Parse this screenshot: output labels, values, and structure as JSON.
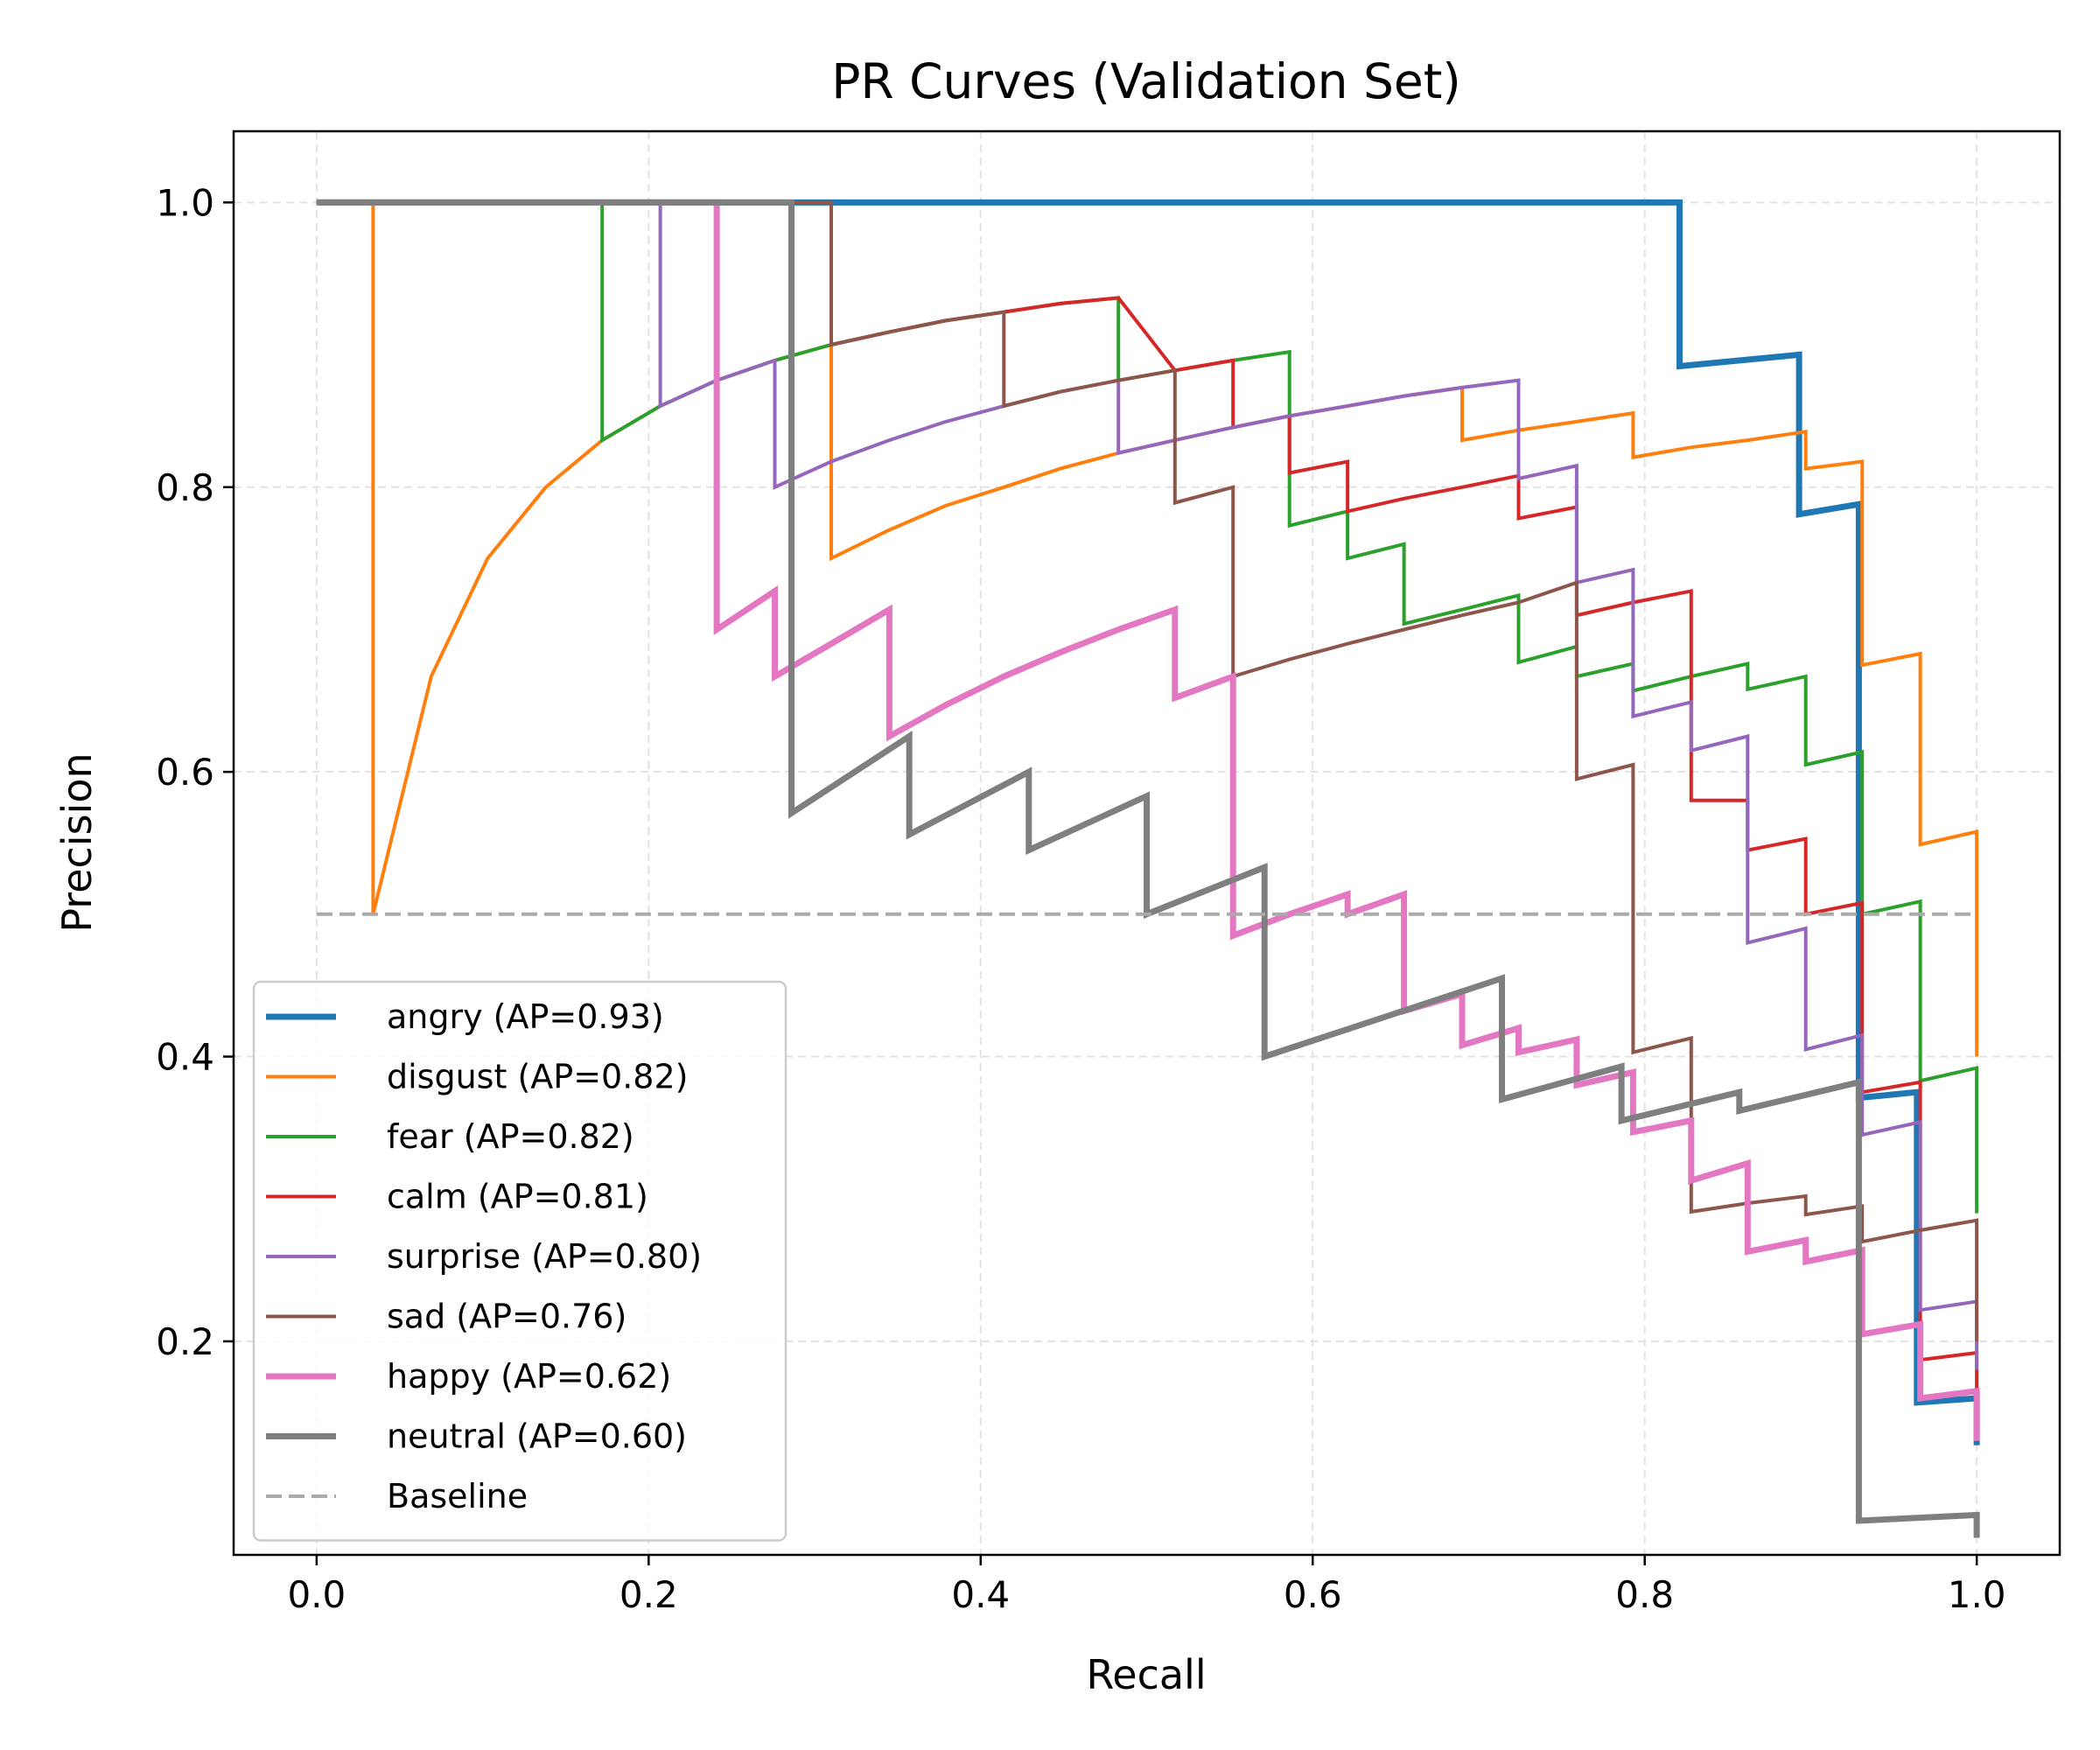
{
  "chart_data": {
    "type": "line",
    "title": "PR Curves (Validation Set)",
    "xlabel": "Recall",
    "ylabel": "Precision",
    "xlim": [
      -0.05,
      1.05
    ],
    "ylim": [
      0.05,
      1.05
    ],
    "xticks": [
      "0.0",
      "0.2",
      "0.4",
      "0.6",
      "0.8",
      "1.0"
    ],
    "xtick_values": [
      0.0,
      0.2,
      0.4,
      0.6,
      0.8,
      1.0
    ],
    "yticks": [
      "0.2",
      "0.4",
      "0.6",
      "0.8",
      "1.0"
    ],
    "ytick_values": [
      0.2,
      0.4,
      0.6,
      0.8,
      1.0
    ],
    "grid": true,
    "legend_position": "lower-left",
    "series": [
      {
        "name": "angry (AP=0.93)",
        "color": "#1f77b4",
        "width": "thick",
        "points": [
          [
            0.0,
            1.0
          ],
          [
            0.821,
            1.0
          ],
          [
            0.821,
            0.885
          ],
          [
            0.893,
            0.893
          ],
          [
            0.893,
            0.781
          ],
          [
            0.929,
            0.788
          ],
          [
            0.929,
            0.675
          ],
          [
            0.929,
            0.371
          ],
          [
            0.964,
            0.375
          ],
          [
            0.964,
            0.157
          ],
          [
            1.0,
            0.16
          ],
          [
            1.0,
            0.127
          ]
        ]
      },
      {
        "name": "disgust (AP=0.82)",
        "color": "#ff7f0e",
        "width": "normal",
        "points": [
          [
            0.0,
            1.0
          ],
          [
            0.034,
            1.0
          ],
          [
            0.034,
            0.5
          ],
          [
            0.069,
            0.667
          ],
          [
            0.103,
            0.75
          ],
          [
            0.138,
            0.8
          ],
          [
            0.172,
            0.833
          ],
          [
            0.207,
            0.857
          ],
          [
            0.241,
            0.875
          ],
          [
            0.276,
            0.889
          ],
          [
            0.31,
            0.9
          ],
          [
            0.31,
            0.75
          ],
          [
            0.345,
            0.77
          ],
          [
            0.379,
            0.787
          ],
          [
            0.414,
            0.8
          ],
          [
            0.448,
            0.813
          ],
          [
            0.483,
            0.824
          ],
          [
            0.517,
            0.833
          ],
          [
            0.552,
            0.842
          ],
          [
            0.586,
            0.85
          ],
          [
            0.621,
            0.857
          ],
          [
            0.655,
            0.864
          ],
          [
            0.69,
            0.87
          ],
          [
            0.69,
            0.833
          ],
          [
            0.724,
            0.84
          ],
          [
            0.759,
            0.846
          ],
          [
            0.793,
            0.852
          ],
          [
            0.793,
            0.821
          ],
          [
            0.828,
            0.828
          ],
          [
            0.862,
            0.833
          ],
          [
            0.897,
            0.839
          ],
          [
            0.897,
            0.813
          ],
          [
            0.931,
            0.818
          ],
          [
            0.931,
            0.675
          ],
          [
            0.966,
            0.683
          ],
          [
            0.966,
            0.549
          ],
          [
            1.0,
            0.558
          ],
          [
            1.0,
            0.4
          ]
        ]
      },
      {
        "name": "fear (AP=0.82)",
        "color": "#2ca02c",
        "width": "normal",
        "points": [
          [
            0.0,
            1.0
          ],
          [
            0.172,
            1.0
          ],
          [
            0.172,
            0.833
          ],
          [
            0.207,
            0.857
          ],
          [
            0.241,
            0.875
          ],
          [
            0.276,
            0.889
          ],
          [
            0.31,
            0.9
          ],
          [
            0.345,
            0.909
          ],
          [
            0.379,
            0.917
          ],
          [
            0.414,
            0.923
          ],
          [
            0.448,
            0.929
          ],
          [
            0.483,
            0.933
          ],
          [
            0.483,
            0.875
          ],
          [
            0.517,
            0.882
          ],
          [
            0.552,
            0.889
          ],
          [
            0.586,
            0.895
          ],
          [
            0.586,
            0.773
          ],
          [
            0.621,
            0.783
          ],
          [
            0.621,
            0.75
          ],
          [
            0.655,
            0.76
          ],
          [
            0.655,
            0.704
          ],
          [
            0.69,
            0.714
          ],
          [
            0.724,
            0.724
          ],
          [
            0.724,
            0.677
          ],
          [
            0.759,
            0.688
          ],
          [
            0.759,
            0.667
          ],
          [
            0.793,
            0.676
          ],
          [
            0.793,
            0.657
          ],
          [
            0.828,
            0.667
          ],
          [
            0.862,
            0.676
          ],
          [
            0.862,
            0.658
          ],
          [
            0.897,
            0.667
          ],
          [
            0.897,
            0.605
          ],
          [
            0.931,
            0.614
          ],
          [
            0.931,
            0.5
          ],
          [
            0.966,
            0.509
          ],
          [
            0.966,
            0.383
          ],
          [
            1.0,
            0.392
          ],
          [
            1.0,
            0.29
          ]
        ]
      },
      {
        "name": "calm (AP=0.81)",
        "color": "#d62728",
        "width": "normal",
        "points": [
          [
            0.0,
            1.0
          ],
          [
            0.31,
            1.0
          ],
          [
            0.31,
            0.9
          ],
          [
            0.345,
            0.909
          ],
          [
            0.379,
            0.917
          ],
          [
            0.414,
            0.923
          ],
          [
            0.448,
            0.929
          ],
          [
            0.483,
            0.933
          ],
          [
            0.517,
            0.882
          ],
          [
            0.552,
            0.889
          ],
          [
            0.552,
            0.842
          ],
          [
            0.586,
            0.85
          ],
          [
            0.586,
            0.81
          ],
          [
            0.621,
            0.818
          ],
          [
            0.621,
            0.783
          ],
          [
            0.655,
            0.792
          ],
          [
            0.69,
            0.8
          ],
          [
            0.724,
            0.808
          ],
          [
            0.724,
            0.778
          ],
          [
            0.759,
            0.786
          ],
          [
            0.759,
            0.71
          ],
          [
            0.793,
            0.719
          ],
          [
            0.828,
            0.727
          ],
          [
            0.828,
            0.615
          ],
          [
            0.828,
            0.58
          ],
          [
            0.862,
            0.58
          ],
          [
            0.862,
            0.545
          ],
          [
            0.897,
            0.553
          ],
          [
            0.897,
            0.5
          ],
          [
            0.931,
            0.508
          ],
          [
            0.931,
            0.375
          ],
          [
            0.966,
            0.382
          ],
          [
            0.966,
            0.187
          ],
          [
            1.0,
            0.192
          ],
          [
            1.0,
            0.15
          ]
        ]
      },
      {
        "name": "surprise (AP=0.80)",
        "color": "#9467bd",
        "width": "normal",
        "points": [
          [
            0.0,
            1.0
          ],
          [
            0.207,
            1.0
          ],
          [
            0.207,
            0.857
          ],
          [
            0.241,
            0.875
          ],
          [
            0.276,
            0.889
          ],
          [
            0.276,
            0.8
          ],
          [
            0.31,
            0.818
          ],
          [
            0.345,
            0.833
          ],
          [
            0.379,
            0.846
          ],
          [
            0.414,
            0.857
          ],
          [
            0.448,
            0.867
          ],
          [
            0.483,
            0.875
          ],
          [
            0.483,
            0.824
          ],
          [
            0.517,
            0.833
          ],
          [
            0.552,
            0.842
          ],
          [
            0.586,
            0.85
          ],
          [
            0.621,
            0.857
          ],
          [
            0.655,
            0.864
          ],
          [
            0.69,
            0.87
          ],
          [
            0.724,
            0.875
          ],
          [
            0.724,
            0.806
          ],
          [
            0.759,
            0.815
          ],
          [
            0.759,
            0.733
          ],
          [
            0.793,
            0.742
          ],
          [
            0.793,
            0.639
          ],
          [
            0.828,
            0.649
          ],
          [
            0.828,
            0.615
          ],
          [
            0.862,
            0.625
          ],
          [
            0.862,
            0.48
          ],
          [
            0.897,
            0.49
          ],
          [
            0.897,
            0.405
          ],
          [
            0.931,
            0.415
          ],
          [
            0.931,
            0.345
          ],
          [
            0.966,
            0.354
          ],
          [
            0.966,
            0.222
          ],
          [
            1.0,
            0.228
          ],
          [
            1.0,
            0.18
          ]
        ]
      },
      {
        "name": "sad (AP=0.76)",
        "color": "#8c564b",
        "width": "normal",
        "points": [
          [
            0.0,
            1.0
          ],
          [
            0.31,
            1.0
          ],
          [
            0.31,
            0.9
          ],
          [
            0.345,
            0.909
          ],
          [
            0.379,
            0.917
          ],
          [
            0.414,
            0.923
          ],
          [
            0.414,
            0.857
          ],
          [
            0.448,
            0.867
          ],
          [
            0.483,
            0.875
          ],
          [
            0.517,
            0.882
          ],
          [
            0.517,
            0.789
          ],
          [
            0.552,
            0.8
          ],
          [
            0.552,
            0.667
          ],
          [
            0.586,
            0.679
          ],
          [
            0.621,
            0.69
          ],
          [
            0.655,
            0.7
          ],
          [
            0.69,
            0.71
          ],
          [
            0.724,
            0.719
          ],
          [
            0.759,
            0.733
          ],
          [
            0.759,
            0.595
          ],
          [
            0.793,
            0.605
          ],
          [
            0.793,
            0.403
          ],
          [
            0.828,
            0.413
          ],
          [
            0.828,
            0.291
          ],
          [
            0.862,
            0.297
          ],
          [
            0.897,
            0.302
          ],
          [
            0.897,
            0.289
          ],
          [
            0.931,
            0.295
          ],
          [
            0.931,
            0.27
          ],
          [
            0.966,
            0.278
          ],
          [
            1.0,
            0.285
          ],
          [
            1.0,
            0.2
          ]
        ]
      },
      {
        "name": "happy (AP=0.62)",
        "color": "#e377c2",
        "width": "thick",
        "points": [
          [
            0.0,
            1.0
          ],
          [
            0.241,
            1.0
          ],
          [
            0.241,
            0.7
          ],
          [
            0.276,
            0.727
          ],
          [
            0.276,
            0.667
          ],
          [
            0.31,
            0.69
          ],
          [
            0.345,
            0.714
          ],
          [
            0.345,
            0.625
          ],
          [
            0.379,
            0.647
          ],
          [
            0.414,
            0.667
          ],
          [
            0.448,
            0.684
          ],
          [
            0.483,
            0.7
          ],
          [
            0.517,
            0.714
          ],
          [
            0.517,
            0.652
          ],
          [
            0.552,
            0.667
          ],
          [
            0.552,
            0.485
          ],
          [
            0.586,
            0.5
          ],
          [
            0.621,
            0.514
          ],
          [
            0.621,
            0.5
          ],
          [
            0.655,
            0.514
          ],
          [
            0.655,
            0.432
          ],
          [
            0.69,
            0.444
          ],
          [
            0.69,
            0.408
          ],
          [
            0.724,
            0.42
          ],
          [
            0.724,
            0.403
          ],
          [
            0.759,
            0.412
          ],
          [
            0.759,
            0.38
          ],
          [
            0.793,
            0.389
          ],
          [
            0.793,
            0.347
          ],
          [
            0.828,
            0.355
          ],
          [
            0.828,
            0.313
          ],
          [
            0.862,
            0.325
          ],
          [
            0.862,
            0.263
          ],
          [
            0.897,
            0.271
          ],
          [
            0.897,
            0.256
          ],
          [
            0.931,
            0.264
          ],
          [
            0.931,
            0.205
          ],
          [
            0.966,
            0.212
          ],
          [
            0.966,
            0.16
          ],
          [
            1.0,
            0.165
          ],
          [
            1.0,
            0.13
          ]
        ]
      },
      {
        "name": "neutral (AP=0.60)",
        "color": "#7f7f7f",
        "width": "thick",
        "points": [
          [
            0.0,
            1.0
          ],
          [
            0.286,
            1.0
          ],
          [
            0.286,
            0.571
          ],
          [
            0.357,
            0.625
          ],
          [
            0.357,
            0.556
          ],
          [
            0.429,
            0.6
          ],
          [
            0.429,
            0.545
          ],
          [
            0.5,
            0.583
          ],
          [
            0.5,
            0.5
          ],
          [
            0.571,
            0.533
          ],
          [
            0.571,
            0.4
          ],
          [
            0.714,
            0.455
          ],
          [
            0.714,
            0.37
          ],
          [
            0.786,
            0.393
          ],
          [
            0.786,
            0.355
          ],
          [
            0.857,
            0.375
          ],
          [
            0.857,
            0.362
          ],
          [
            0.929,
            0.382
          ],
          [
            0.929,
            0.074
          ],
          [
            1.0,
            0.078
          ],
          [
            1.0,
            0.062
          ]
        ]
      },
      {
        "name": "Baseline",
        "color": "#aaaaaa",
        "width": "dashed",
        "points": [
          [
            0.0,
            0.5
          ],
          [
            1.0,
            0.5
          ]
        ]
      }
    ]
  }
}
